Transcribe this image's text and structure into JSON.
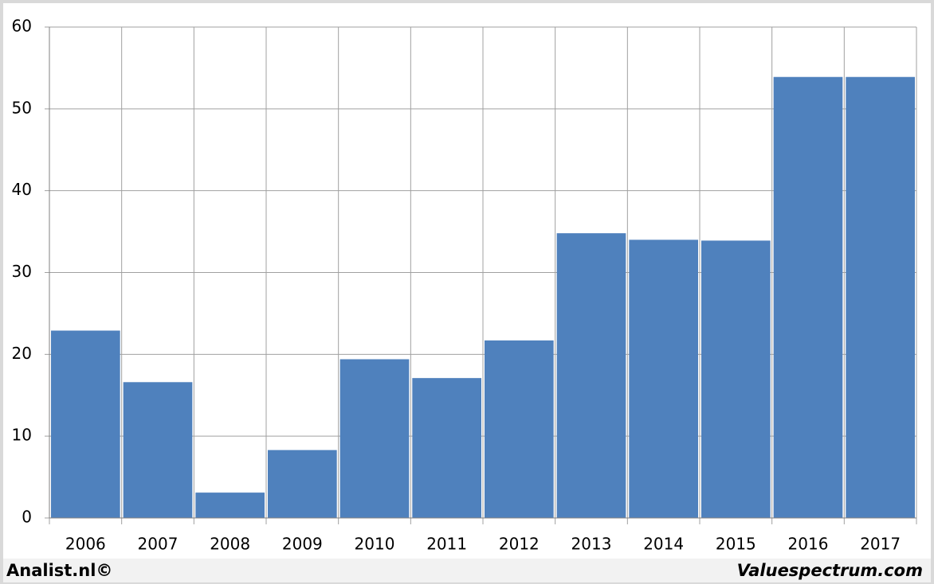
{
  "chart_data": {
    "type": "bar",
    "categories": [
      "2006",
      "2007",
      "2008",
      "2009",
      "2010",
      "2011",
      "2012",
      "2013",
      "2014",
      "2015",
      "2016",
      "2017"
    ],
    "values": [
      22.9,
      16.6,
      3.1,
      8.3,
      19.4,
      17.1,
      21.7,
      34.8,
      34.0,
      33.9,
      53.9,
      53.9
    ],
    "color": "#4f81bd",
    "ylim": [
      0,
      60
    ],
    "yticks": [
      0,
      10,
      20,
      30,
      40,
      50,
      60
    ],
    "grid": true,
    "footer_left": "Analist.nl©",
    "footer_right": "Valuespectrum.com"
  }
}
